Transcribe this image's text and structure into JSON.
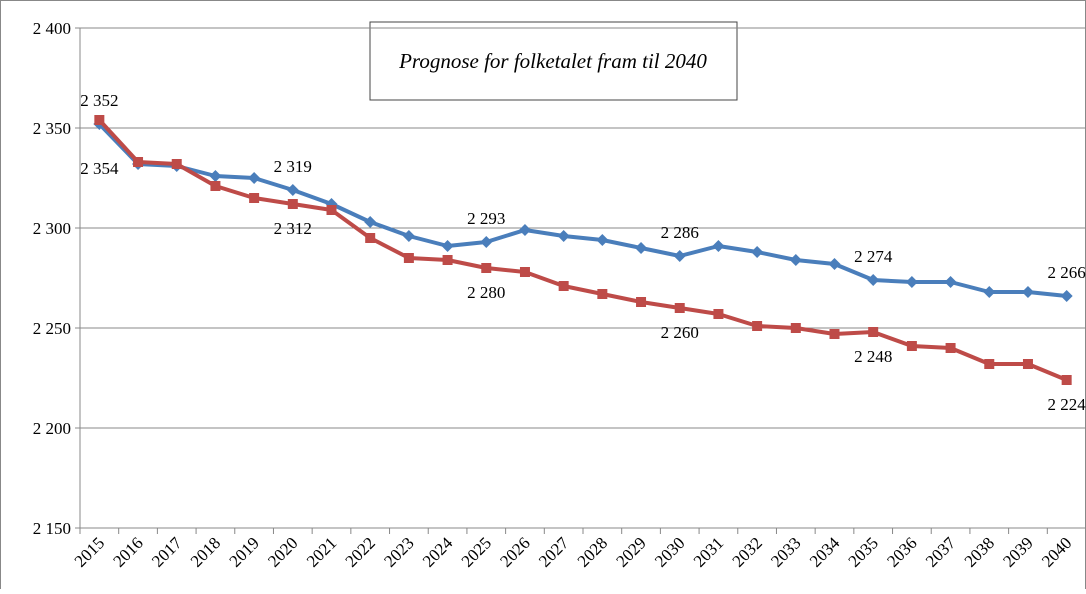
{
  "chart_data": {
    "type": "line",
    "title": "Prognose for folketalet fram til 2040",
    "categories": [
      "2015",
      "2016",
      "2017",
      "2018",
      "2019",
      "2020",
      "2021",
      "2022",
      "2023",
      "2024",
      "2025",
      "2026",
      "2027",
      "2028",
      "2029",
      "2030",
      "2031",
      "2032",
      "2033",
      "2034",
      "2035",
      "2036",
      "2037",
      "2038",
      "2039",
      "2040"
    ],
    "series": [
      {
        "color": "#4a7ebb",
        "marker": "diamond",
        "values": [
          2352,
          2332,
          2331,
          2326,
          2325,
          2319,
          2312,
          2303,
          2296,
          2291,
          2293,
          2299,
          2296,
          2294,
          2290,
          2286,
          2291,
          2288,
          2284,
          2282,
          2274,
          2273,
          2273,
          2268,
          2268,
          2266
        ],
        "value_labels": [
          "2 352",
          null,
          null,
          null,
          null,
          "2 319",
          null,
          null,
          null,
          null,
          "2 293",
          null,
          null,
          null,
          null,
          "2 286",
          null,
          null,
          null,
          null,
          "2 274",
          null,
          null,
          null,
          null,
          "2 266"
        ]
      },
      {
        "color": "#be4b48",
        "marker": "square",
        "values": [
          2354,
          2333,
          2332,
          2321,
          2315,
          2312,
          2309,
          2295,
          2285,
          2284,
          2280,
          2278,
          2271,
          2267,
          2263,
          2260,
          2257,
          2251,
          2250,
          2247,
          2248,
          2241,
          2240,
          2232,
          2232,
          2224
        ],
        "value_labels": [
          "2 354",
          null,
          null,
          null,
          null,
          "2 312",
          null,
          null,
          null,
          null,
          "2 280",
          null,
          null,
          null,
          null,
          "2 260",
          null,
          null,
          null,
          null,
          "2 248",
          null,
          null,
          null,
          null,
          "2 224"
        ]
      }
    ],
    "ylim": [
      2150,
      2400
    ],
    "yticks": [
      {
        "value": 2150,
        "label": "2 150"
      },
      {
        "value": 2200,
        "label": "2 200"
      },
      {
        "value": 2250,
        "label": "2 250"
      },
      {
        "value": 2300,
        "label": "2 300"
      },
      {
        "value": 2350,
        "label": "2 350"
      },
      {
        "value": 2400,
        "label": "2 400"
      }
    ],
    "grid": true
  }
}
